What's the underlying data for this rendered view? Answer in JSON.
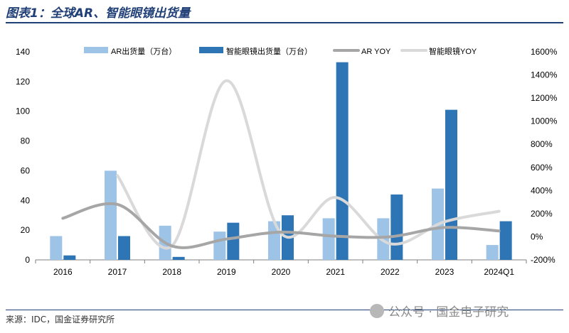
{
  "header": {
    "title": "图表1：全球AR、智能眼镜出货量"
  },
  "footer": {
    "source": "来源：IDC，国金证券研究所",
    "watermark": "公众号 · 国金电子研究"
  },
  "colors": {
    "ar_bar": "#9dc3e6",
    "glasses_bar": "#2e75b6",
    "ar_yoy": "#a6a6a6",
    "glasses_yoy": "#d9d9d9"
  },
  "chart_data": {
    "type": "bar",
    "categories": [
      "2016",
      "2017",
      "2018",
      "2019",
      "2020",
      "2021",
      "2022",
      "2023",
      "2024Q1"
    ],
    "series": [
      {
        "name": "AR出货量（万台）",
        "kind": "bar",
        "axis": "left",
        "values": [
          16,
          60,
          23,
          19,
          26,
          28,
          28,
          48,
          10
        ]
      },
      {
        "name": "智能眼镜出货量（万台）",
        "kind": "bar",
        "axis": "left",
        "values": [
          3,
          16,
          2,
          25,
          30,
          133,
          44,
          101,
          26
        ]
      },
      {
        "name": "AR YOY",
        "kind": "line",
        "axis": "right",
        "values": [
          160,
          280,
          -80,
          -20,
          40,
          5,
          0,
          80,
          50
        ]
      },
      {
        "name": "智能眼镜YOY",
        "kind": "line",
        "axis": "right",
        "values": [
          null,
          530,
          -80,
          1350,
          30,
          340,
          -60,
          130,
          220
        ]
      }
    ],
    "left_axis": {
      "ylim": [
        0,
        140
      ],
      "ticks": [
        "0",
        "20",
        "40",
        "60",
        "80",
        "100",
        "120",
        "140"
      ]
    },
    "right_axis": {
      "ylim": [
        -200,
        1600
      ],
      "ticks": [
        "-200%",
        "0%",
        "200%",
        "400%",
        "600%",
        "800%",
        "1000%",
        "1200%",
        "1400%",
        "1600%"
      ]
    },
    "title": "",
    "xlabel": "",
    "ylabel": "",
    "legend": "top",
    "grid": false
  }
}
